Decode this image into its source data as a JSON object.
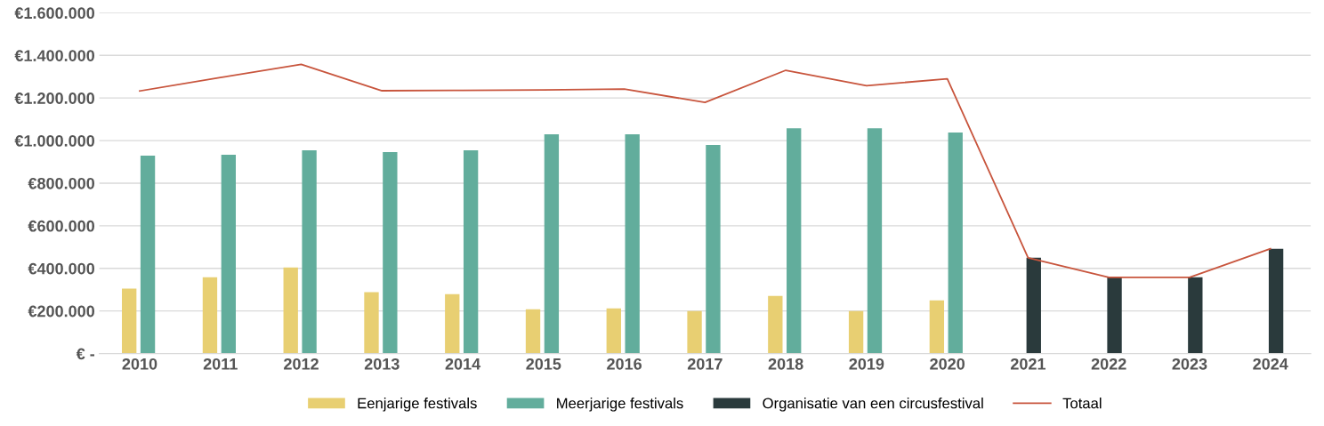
{
  "chart_data": {
    "type": "bar",
    "categories": [
      "2010",
      "2011",
      "2012",
      "2013",
      "2014",
      "2015",
      "2016",
      "2017",
      "2018",
      "2019",
      "2020",
      "2021",
      "2022",
      "2023",
      "2024"
    ],
    "series": [
      {
        "name": "Eenjarige festivals",
        "color": "#e8cf72",
        "values": [
          305000,
          358000,
          404000,
          288000,
          279000,
          208000,
          212000,
          200000,
          271000,
          200000,
          250000,
          null,
          null,
          null,
          null
        ]
      },
      {
        "name": "Meerjarige festivals",
        "color": "#62ad9c",
        "values": [
          929000,
          933000,
          954000,
          946000,
          954000,
          1029000,
          1029000,
          979000,
          1058000,
          1058000,
          1038000,
          null,
          null,
          null,
          null
        ]
      },
      {
        "name": "Organisatie van een circusfestival",
        "color": "#2a3a3c",
        "values": [
          null,
          null,
          null,
          null,
          null,
          null,
          null,
          null,
          null,
          null,
          null,
          450000,
          358000,
          358000,
          492000
        ]
      },
      {
        "name": "Totaal",
        "type": "line",
        "color": "#c8553d",
        "values": [
          1233000,
          1296000,
          1358000,
          1234000,
          1236000,
          1238000,
          1242000,
          1179000,
          1330000,
          1258000,
          1290000,
          450000,
          358000,
          358000,
          492000
        ]
      }
    ],
    "ylim": [
      0,
      1600000
    ],
    "yticks": [
      {
        "value": 0,
        "label": "€ -"
      },
      {
        "value": 200000,
        "label": "€200.000"
      },
      {
        "value": 400000,
        "label": "€400.000"
      },
      {
        "value": 600000,
        "label": "€600.000"
      },
      {
        "value": 800000,
        "label": "€800.000"
      },
      {
        "value": 1000000,
        "label": "€1.000.000"
      },
      {
        "value": 1200000,
        "label": "€1.200.000"
      },
      {
        "value": 1400000,
        "label": "€1.400.000"
      },
      {
        "value": 1600000,
        "label": "€1.600.000"
      }
    ],
    "grid": "y",
    "legend": "bottom",
    "marker": "none",
    "line_style": "solid"
  }
}
